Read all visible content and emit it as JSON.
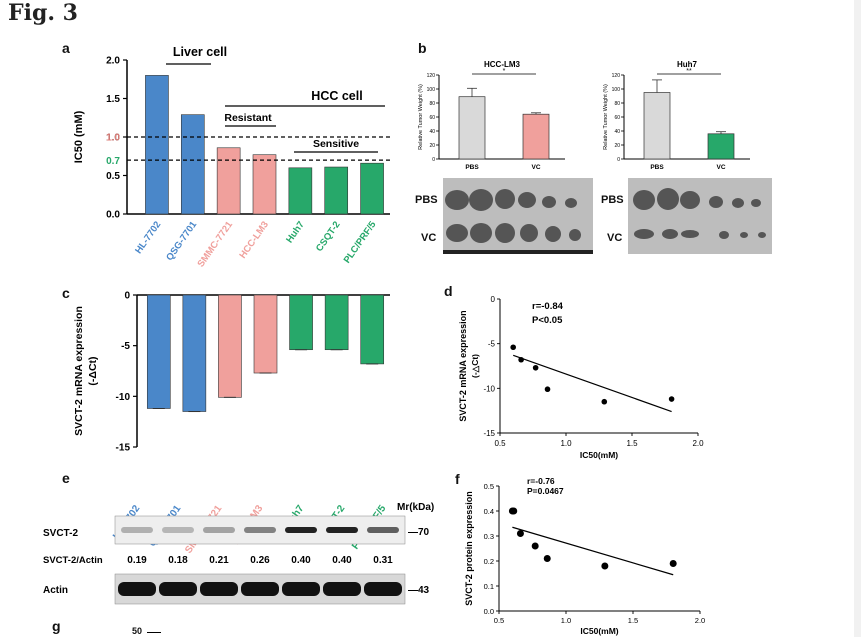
{
  "figure_label": "Fig. 3",
  "panel_letters": {
    "a": "a",
    "b": "b",
    "c": "c",
    "d": "d",
    "e": "e",
    "f": "f",
    "g": "g"
  },
  "colors": {
    "blue": "#4a87c9",
    "pink": "#f0a09c",
    "green": "#27a86a",
    "gray": "#d9d9d9",
    "red_line": "#e07f7a",
    "green_line": "#27a86a"
  },
  "cell_lines": [
    "HL-7702",
    "QSG-7701",
    "SMMC-7721",
    "HCC-LM3",
    "Huh7",
    "CSQT-2",
    "PLC/PRF/5"
  ],
  "cell_line_groups": [
    "blue",
    "blue",
    "pink",
    "pink",
    "green",
    "green",
    "green"
  ],
  "panel_a": {
    "ylabel": "IC50 (mM)",
    "yticks": [
      "0.0",
      "0.5",
      "1.0",
      "1.5",
      "2.0"
    ],
    "ref_labels": {
      "high": "1.0",
      "low": "0.7"
    },
    "liver_label": "Liver cell",
    "hcc_label": "HCC cell",
    "resistant_label": "Resistant",
    "sensitive_label": "Sensitive",
    "chart_data": {
      "type": "bar",
      "categories": [
        "HL-7702",
        "QSG-7701",
        "SMMC-7721",
        "HCC-LM3",
        "Huh7",
        "CSQT-2",
        "PLC/PRF/5"
      ],
      "values": [
        1.8,
        1.29,
        0.86,
        0.77,
        0.6,
        0.61,
        0.66
      ],
      "ylim": [
        0,
        2.0
      ],
      "reference_lines": [
        1.0,
        0.7
      ]
    }
  },
  "panel_b": {
    "ylabel": "Relative Tumor Weight (%)",
    "yticks": [
      "0",
      "20",
      "40",
      "60",
      "80",
      "100",
      "120"
    ],
    "left": {
      "title": "HCC-LM3",
      "sig": "*",
      "chart_data": {
        "type": "bar",
        "categories": [
          "PBS",
          "VC"
        ],
        "values": [
          89,
          64
        ],
        "errors": [
          12,
          2
        ],
        "ylim": [
          0,
          120
        ]
      }
    },
    "right": {
      "title": "Huh7",
      "sig": "**",
      "chart_data": {
        "type": "bar",
        "categories": [
          "PBS",
          "VC"
        ],
        "values": [
          95,
          36
        ],
        "errors": [
          18,
          3
        ],
        "ylim": [
          0,
          120
        ]
      }
    },
    "photo_rows": [
      "PBS",
      "VC"
    ]
  },
  "panel_c": {
    "ylabel_line1": "SVCT-2 mRNA expression",
    "ylabel_line2": "(-ΔCt)",
    "yticks": [
      "-15",
      "-10",
      "-5",
      "0"
    ],
    "chart_data": {
      "type": "bar",
      "categories": [
        "HL-7702",
        "QSG-7701",
        "SMMC-7721",
        "HCC-LM3",
        "Huh7",
        "CSQT-2",
        "PLC/PRF/5"
      ],
      "values": [
        -11.2,
        -11.5,
        -10.1,
        -7.7,
        -5.4,
        -5.4,
        -6.8
      ],
      "ylim": [
        -15,
        0
      ]
    }
  },
  "panel_d": {
    "stat1": "r=-0.84",
    "stat2": "P<0.05",
    "ylabel_line1": "SVCT-2 mRNA expression",
    "ylabel_line2": "(-△Ct)",
    "xlabel": "IC50(mM)",
    "xticks": [
      "0.5",
      "1.0",
      "1.5",
      "2.0"
    ],
    "yticks": [
      "0",
      "-5",
      "-10",
      "-15"
    ],
    "chart_data": {
      "type": "scatter",
      "x": [
        0.6,
        0.66,
        0.77,
        0.86,
        1.29,
        1.8
      ],
      "y": [
        -5.4,
        -6.8,
        -7.7,
        -10.1,
        -11.5,
        -11.2
      ],
      "xlim": [
        0.5,
        2.0
      ],
      "ylim": [
        -15,
        0
      ],
      "fit": {
        "x": [
          0.6,
          1.8
        ],
        "y": [
          -6.3,
          -12.6
        ]
      }
    }
  },
  "panel_e": {
    "mr_label": "Mr(kDa)",
    "svct2_label": "SVCT-2",
    "ratio_label": "SVCT-2/Actin",
    "actin_label": "Actin",
    "mw_70": "—70",
    "mw_43": "—43",
    "ratios": [
      "0.19",
      "0.18",
      "0.21",
      "0.26",
      "0.40",
      "0.40",
      "0.31"
    ]
  },
  "panel_f": {
    "stat1": "r=-0.76",
    "stat2": "P=0.0467",
    "ylabel": "SVCT-2 protein expression",
    "xlabel": "IC50(mM)",
    "xticks": [
      "0.5",
      "1.0",
      "1.5",
      "2.0"
    ],
    "yticks": [
      "0.0",
      "0.1",
      "0.2",
      "0.3",
      "0.4",
      "0.5"
    ],
    "chart_data": {
      "type": "scatter",
      "x": [
        0.6,
        0.61,
        0.66,
        0.77,
        0.86,
        1.29,
        1.8
      ],
      "y": [
        0.4,
        0.4,
        0.31,
        0.26,
        0.21,
        0.18,
        0.19
      ],
      "xlim": [
        0.5,
        2.0
      ],
      "ylim": [
        0,
        0.5
      ],
      "fit": {
        "x": [
          0.6,
          1.8
        ],
        "y": [
          0.335,
          0.145
        ]
      }
    }
  },
  "panel_g": {
    "ytick_top": "50"
  }
}
